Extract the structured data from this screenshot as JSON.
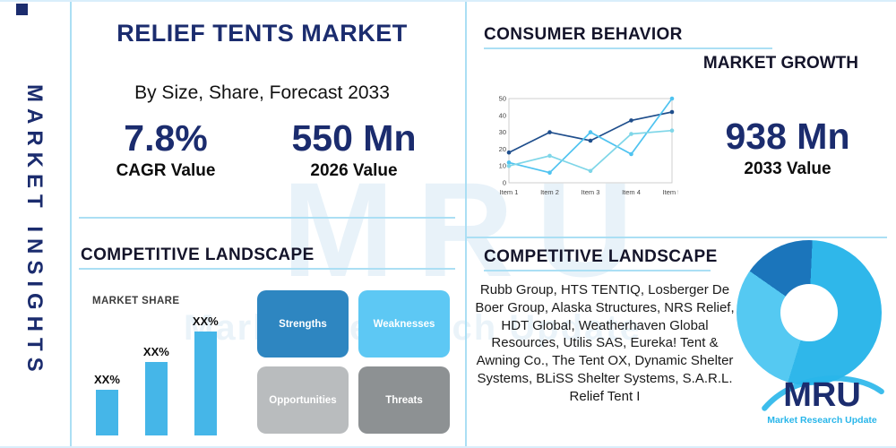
{
  "watermark": {
    "line1": "MRU",
    "line2": "Market Research Update"
  },
  "sidebar": {
    "label": "MARKET INSIGHTS"
  },
  "header": {
    "title": "RELIEF TENTS MARKET",
    "subtitle": "By Size, Share, Forecast 2033",
    "cagr_value": "7.8%",
    "cagr_label": "CAGR Value",
    "value_2026": "550 Mn",
    "label_2026": "2026 Value"
  },
  "consumer": {
    "title": "CONSUMER BEHAVIOR",
    "subtitle": "MARKET GROWTH",
    "value_2033": "938 Mn",
    "label_2033": "2033 Value"
  },
  "landscape_left": {
    "title": "COMPETITIVE LANDSCAPE",
    "market_share_label": "MARKET SHARE",
    "swot": [
      {
        "label": "Strengths",
        "color": "#2e86c1"
      },
      {
        "label": "Weaknesses",
        "color": "#5dc8f4"
      },
      {
        "label": "Opportunities",
        "color": "#b9bcbe"
      },
      {
        "label": "Threats",
        "color": "#8d9193"
      }
    ]
  },
  "landscape_right": {
    "title": "COMPETITIVE LANDSCAPE",
    "companies": "Rubb Group, HTS TENTIQ, Losberger De Boer Group, Alaska Structures, NRS Relief, HDT Global, Weatherhaven Global Resources, Utilis SAS, Eureka! Tent & Awning Co., The Tent OX, Dynamic Shelter Systems, BLiSS Shelter Systems, S.A.R.L. Relief Tent I"
  },
  "logo": {
    "name": "MRU",
    "tagline": "Market Research Update"
  },
  "colors": {
    "navy": "#1b2c6e",
    "accent": "#29b6ea",
    "divider": "#abdff4",
    "bar": "#45b6e8"
  },
  "chart_data": [
    {
      "name": "market-growth-line",
      "type": "line",
      "title": "MARKET GROWTH",
      "categories": [
        "Item 1",
        "Item 2",
        "Item 3",
        "Item 4",
        "Item 5"
      ],
      "series": [
        {
          "name": "series-dark-blue",
          "color": "#1f4e8c",
          "values": [
            18,
            30,
            25,
            37,
            42
          ]
        },
        {
          "name": "series-light-blue",
          "color": "#4fc3f0",
          "values": [
            12,
            6,
            30,
            17,
            50
          ]
        },
        {
          "name": "series-teal",
          "color": "#7fd6e8",
          "values": [
            10,
            16,
            7,
            29,
            31
          ]
        }
      ],
      "ylim": [
        0,
        50
      ],
      "yticks": [
        0,
        10,
        20,
        30,
        40,
        50
      ],
      "grid": false,
      "legend": false
    },
    {
      "name": "market-share-bars",
      "type": "bar",
      "title": "MARKET SHARE",
      "labels": [
        "XX%",
        "XX%",
        "XX%"
      ],
      "values": [
        30,
        48,
        68
      ],
      "ylim": [
        0,
        75
      ],
      "color": "#45b6e8"
    },
    {
      "name": "segment-donut",
      "type": "pie",
      "donut": true,
      "slices": [
        {
          "name": "dark-blue-segment",
          "value": 16,
          "color": "#1b75bb"
        },
        {
          "name": "cyan-segment",
          "value": 54,
          "color": "#2fb7ea"
        },
        {
          "name": "light-blue-segment",
          "value": 30,
          "color": "#55c9f2"
        }
      ]
    }
  ]
}
